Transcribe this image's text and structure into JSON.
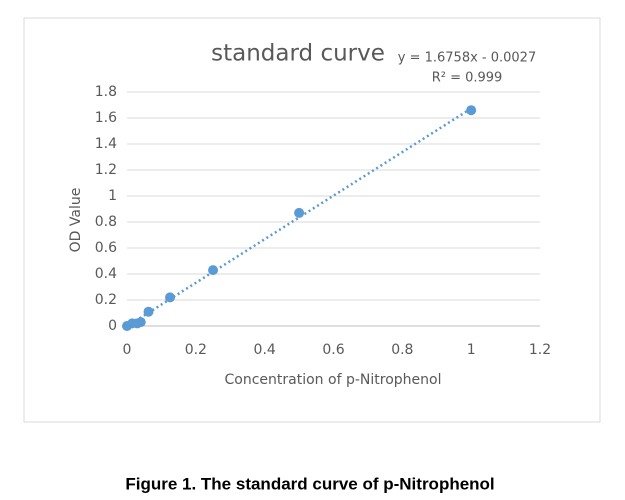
{
  "chart_data": {
    "type": "scatter",
    "title": "standard curve",
    "x_label": "Concentration of  p-Nitrophenol",
    "y_label": "OD Value",
    "x": [
      0,
      0.015,
      0.03,
      0.04,
      0.0625,
      0.125,
      0.25,
      0.5,
      1
    ],
    "values": [
      0,
      0.02,
      0.02,
      0.03,
      0.11,
      0.22,
      0.43,
      0.87,
      1.66
    ],
    "color": "#5b9bd5",
    "xlim": [
      0,
      1.2
    ],
    "xticks": [
      0,
      0.2,
      0.4,
      0.6,
      0.8,
      1,
      1.2
    ],
    "ylim": [
      0,
      1.8
    ],
    "yticks": [
      0,
      0.2,
      0.4,
      0.6,
      0.8,
      1,
      1.2,
      1.4,
      1.6,
      1.8
    ],
    "grid": true,
    "trendline": {
      "slope": 1.6758,
      "intercept": -0.0027,
      "xrange": [
        0,
        1
      ],
      "equation": "y = 1.6758x - 0.0027",
      "r_squared": "R² = 0.999"
    }
  },
  "caption": "Figure 1. The standard curve of p-Nitrophenol"
}
